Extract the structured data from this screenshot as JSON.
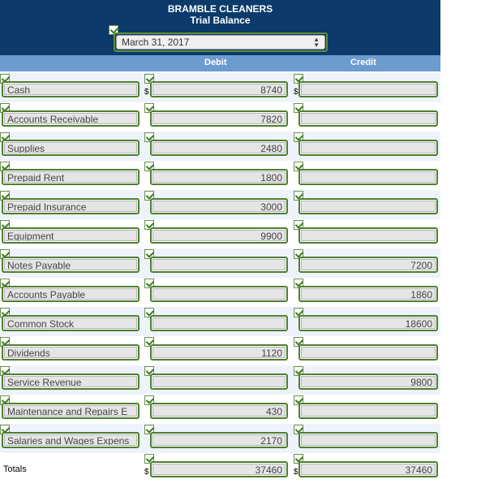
{
  "header": {
    "company": "BRAMBLE CLEANERS",
    "subtitle": "Trial Balance"
  },
  "date_select": {
    "value": "March 31, 2017"
  },
  "columns": {
    "debit": "Debit",
    "credit": "Credit"
  },
  "currency_symbol": "$",
  "rows": [
    {
      "account": "Cash",
      "debit": "8740",
      "credit": "",
      "dollar": true
    },
    {
      "account": "Accounts Receivable",
      "debit": "7820",
      "credit": "",
      "dollar": false
    },
    {
      "account": "Supplies",
      "debit": "2480",
      "credit": "",
      "dollar": false
    },
    {
      "account": "Prepaid Rent",
      "debit": "1800",
      "credit": "",
      "dollar": false
    },
    {
      "account": "Prepaid Insurance",
      "debit": "3000",
      "credit": "",
      "dollar": false
    },
    {
      "account": "Equipment",
      "debit": "9900",
      "credit": "",
      "dollar": false
    },
    {
      "account": "Notes Payable",
      "debit": "",
      "credit": "7200",
      "dollar": false
    },
    {
      "account": "Accounts Payable",
      "debit": "",
      "credit": "1860",
      "dollar": false
    },
    {
      "account": "Common Stock",
      "debit": "",
      "credit": "18600",
      "dollar": false
    },
    {
      "account": "Dividends",
      "debit": "1120",
      "credit": "",
      "dollar": false
    },
    {
      "account": "Service Revenue",
      "debit": "",
      "credit": "9800",
      "dollar": false
    },
    {
      "account": "Maintenance and Repairs E",
      "debit": "430",
      "credit": "",
      "dollar": false
    },
    {
      "account": "Salaries and Wages Expens",
      "debit": "2170",
      "credit": "",
      "dollar": false
    }
  ],
  "totals": {
    "label": "Totals",
    "debit": "37460",
    "credit": "37460"
  }
}
